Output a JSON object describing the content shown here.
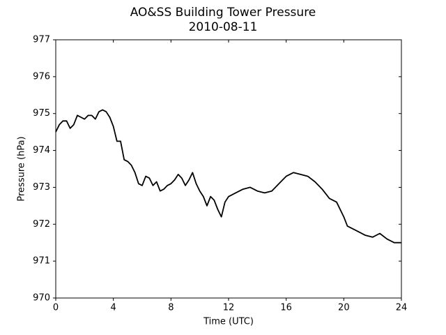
{
  "chart_data": {
    "type": "line",
    "title": "AO&SS Building Tower Pressure",
    "subtitle": "2010-08-11",
    "x_label": "Time (UTC)",
    "y_label": "Pressure (hPa)",
    "xlim": [
      0,
      24
    ],
    "xticks": [
      0,
      4,
      8,
      12,
      16,
      20,
      24
    ],
    "ylim": [
      970,
      977
    ],
    "yticks": [
      970,
      971,
      972,
      973,
      974,
      975,
      976,
      977
    ],
    "grid": false,
    "series": [
      {
        "color": "#000000",
        "x": [
          0,
          0.25,
          0.5,
          0.75,
          1.0,
          1.25,
          1.5,
          1.75,
          2.0,
          2.25,
          2.5,
          2.75,
          3.0,
          3.25,
          3.5,
          3.75,
          4.0,
          4.25,
          4.5,
          4.75,
          5.0,
          5.25,
          5.5,
          5.75,
          6.0,
          6.25,
          6.5,
          6.75,
          7.0,
          7.25,
          7.5,
          7.75,
          8.0,
          8.25,
          8.5,
          8.75,
          9.0,
          9.25,
          9.5,
          9.75,
          10.0,
          10.25,
          10.5,
          10.75,
          11.0,
          11.25,
          11.5,
          11.75,
          12.0,
          12.5,
          13.0,
          13.5,
          14.0,
          14.5,
          15.0,
          15.5,
          16.0,
          16.5,
          17.0,
          17.5,
          18.0,
          18.5,
          19.0,
          19.5,
          20.0,
          20.25,
          20.5,
          21.0,
          21.5,
          22.0,
          22.5,
          23.0,
          23.5,
          24.0
        ],
        "values": [
          974.5,
          974.7,
          974.8,
          974.8,
          974.6,
          974.7,
          974.95,
          974.9,
          974.85,
          974.95,
          974.95,
          974.85,
          975.05,
          975.1,
          975.05,
          974.9,
          974.65,
          974.25,
          974.25,
          973.75,
          973.7,
          973.6,
          973.4,
          973.1,
          973.05,
          973.3,
          973.25,
          973.05,
          973.15,
          972.9,
          972.95,
          973.05,
          973.1,
          973.2,
          973.35,
          973.25,
          973.05,
          973.2,
          973.4,
          973.1,
          972.9,
          972.75,
          972.5,
          972.75,
          972.65,
          972.4,
          972.2,
          972.6,
          972.75,
          972.85,
          972.95,
          973.0,
          972.9,
          972.85,
          972.9,
          973.1,
          973.3,
          973.4,
          973.35,
          973.3,
          973.15,
          972.95,
          972.7,
          972.6,
          972.2,
          971.95,
          971.9,
          971.8,
          971.7,
          971.65,
          971.75,
          971.6,
          971.5,
          971.5
        ]
      }
    ]
  }
}
